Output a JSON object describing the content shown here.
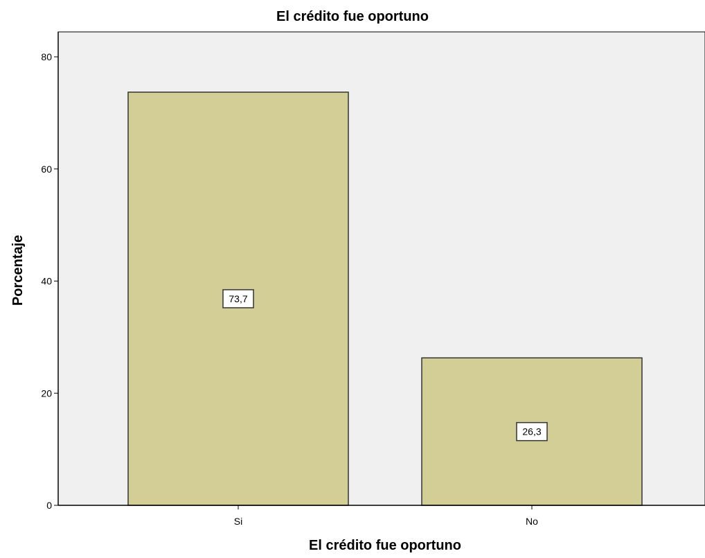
{
  "chart_data": {
    "type": "bar",
    "title": "El crédito fue oportuno",
    "xlabel": "El crédito fue oportuno",
    "ylabel": "Porcentaje",
    "categories": [
      "Si",
      "No"
    ],
    "values": [
      73.7,
      26.3
    ],
    "value_labels": [
      "73,7",
      "26,3"
    ],
    "ylim": [
      0,
      80
    ],
    "yticks": [
      0,
      20,
      40,
      60,
      80
    ],
    "ytick_labels": [
      "0",
      "20",
      "40",
      "60",
      "80"
    ],
    "grid": false,
    "legend": "none",
    "colors": {
      "bar_fill": "#d3cd96",
      "bar_stroke": "#333333",
      "plot_background": "#f0f0f0",
      "axis": "#000000",
      "label_box_fill": "#ffffff",
      "label_box_stroke": "#333333"
    }
  }
}
